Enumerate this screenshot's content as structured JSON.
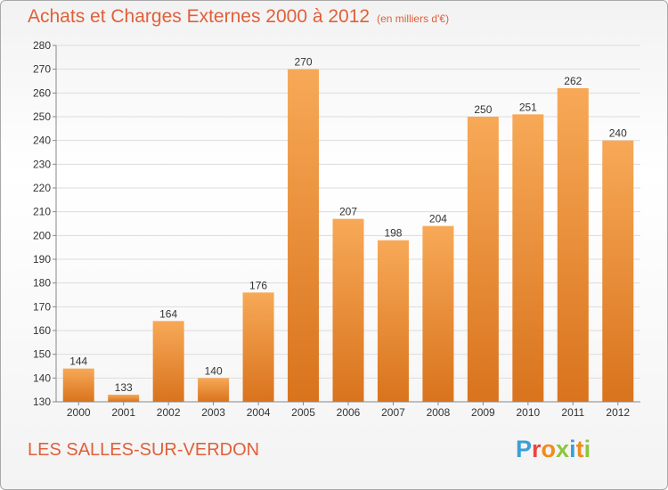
{
  "title": "Achats et Charges Externes 2000 à 2012",
  "unit_note": "(en milliers d'€)",
  "commune": "LES SALLES-SUR-VERDON",
  "brand": {
    "text": "Proxiti",
    "letter_colors": [
      "#3aa0d8",
      "#e8463c",
      "#f08c1e",
      "#8cc63f",
      "#3aa0d8",
      "#f08c1e",
      "#8cc63f"
    ]
  },
  "colors": {
    "bar_light": "#f7a957",
    "bar_dark": "#d9731d",
    "title": "#e0603a",
    "grid": "#dcdcdc"
  },
  "chart_data": {
    "type": "bar",
    "categories": [
      "2000",
      "2001",
      "2002",
      "2003",
      "2004",
      "2005",
      "2006",
      "2007",
      "2008",
      "2009",
      "2010",
      "2011",
      "2012"
    ],
    "values": [
      144,
      133,
      164,
      140,
      176,
      270,
      207,
      198,
      204,
      250,
      251,
      262,
      240
    ],
    "ylim": [
      130,
      280
    ],
    "yticks": [
      130,
      140,
      150,
      160,
      170,
      180,
      190,
      200,
      210,
      220,
      230,
      240,
      250,
      260,
      270,
      280
    ],
    "grid": true,
    "data_labels": true
  }
}
